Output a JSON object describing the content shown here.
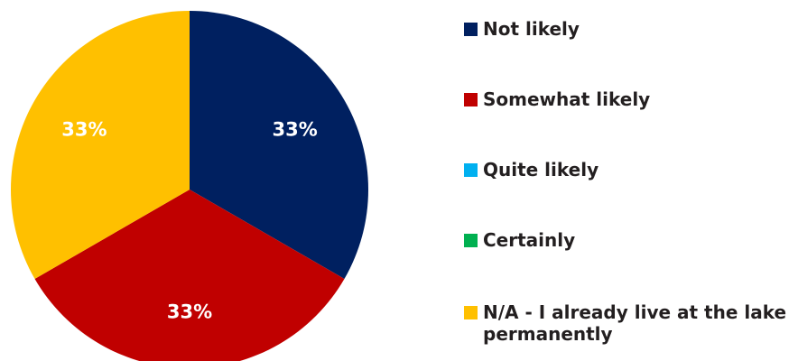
{
  "chart_data": {
    "type": "pie",
    "title": "",
    "legend_position": "right",
    "categories": [
      "Not likely",
      "Somewhat likely",
      "Quite likely",
      "Certainly",
      "N/A - I already live at the lake permanently"
    ],
    "values": [
      33,
      33,
      0,
      0,
      33
    ],
    "data_labels": [
      "33%",
      "33%",
      "",
      "",
      "33%"
    ],
    "colors": [
      "#002060",
      "#C00000",
      "#00B0F0",
      "#00B050",
      "#FFC000"
    ]
  }
}
